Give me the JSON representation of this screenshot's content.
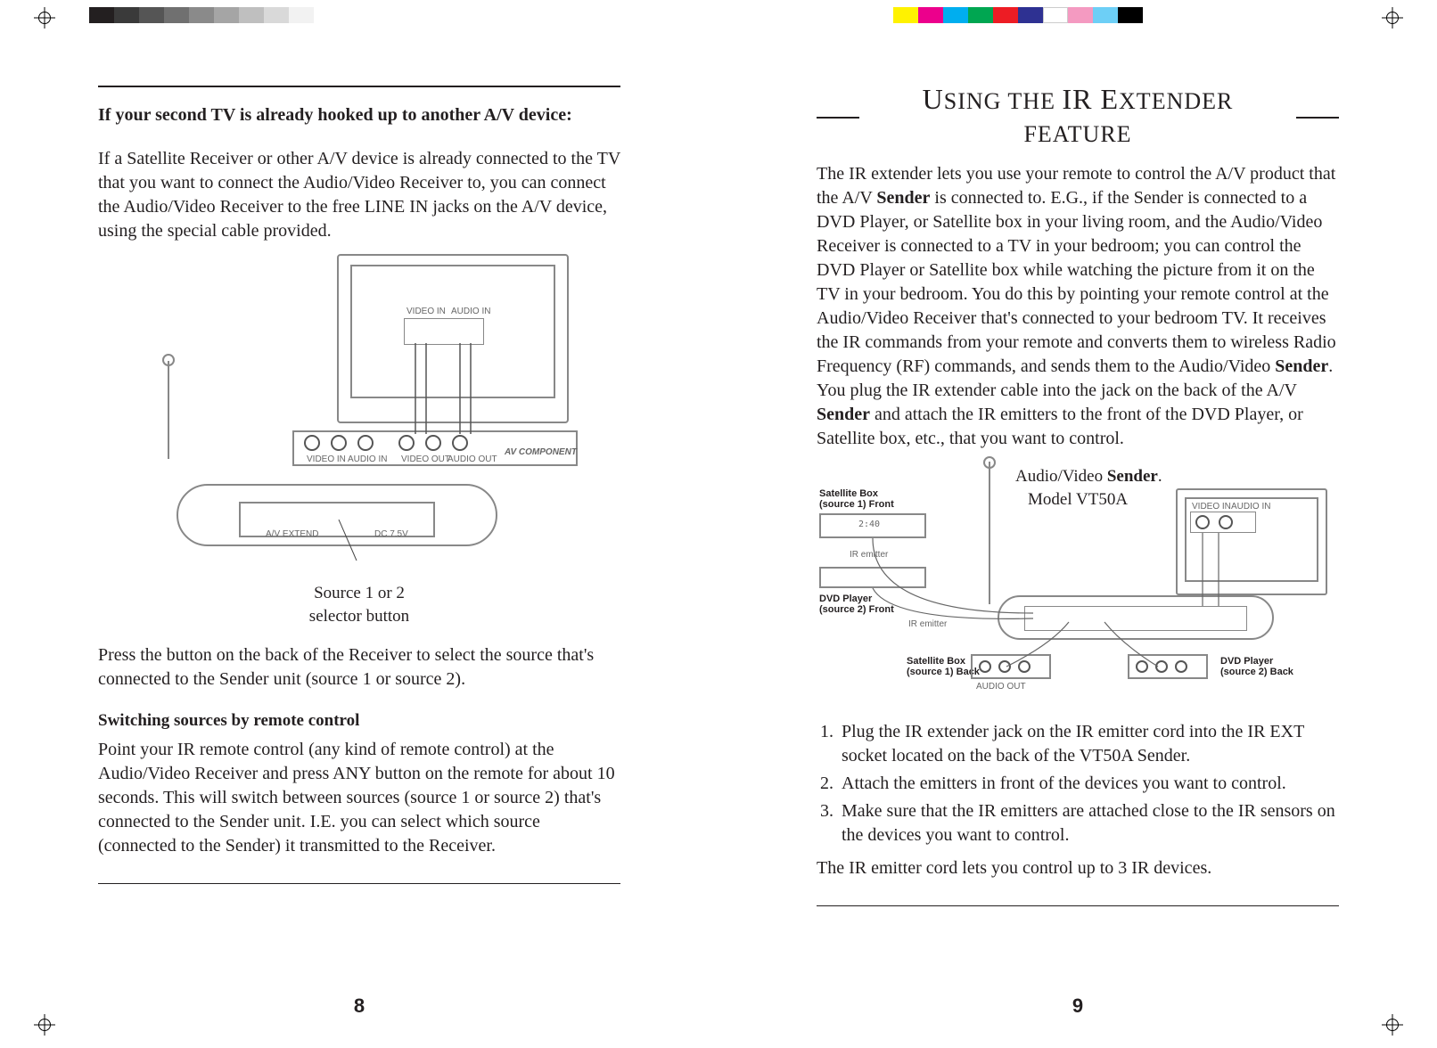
{
  "regSwatchesLeft": [
    "#231f20",
    "#3a3a3a",
    "#555",
    "#707070",
    "#8a8a8a",
    "#a5a5a5",
    "#bfbfbf",
    "#d9d9d9",
    "#f2f2f2"
  ],
  "regSwatchesRight": [
    "#fff200",
    "#ec008c",
    "#00aeef",
    "#00a651",
    "#ed1c24",
    "#2e3192",
    "#ffffff",
    "#f49ac1",
    "#6dcff6",
    "#000000"
  ],
  "leftPage": {
    "heading": "If your second TV is already hooked up to another A/V device:",
    "para1": "If a Satellite Receiver or other A/V device is already connected to the TV that you want to connect the Audio/Video Receiver to, you can connect the Audio/Video Receiver to the free LINE IN jacks on the A/V device, using the special cable provided.",
    "diagramLabels": {
      "videoIn": "VIDEO IN",
      "audioIn": "AUDIO IN",
      "videoOut": "VIDEO OUT",
      "audioOut": "AUDIO OUT",
      "avComponent": "AV COMPONENT",
      "avExtend": "A/V EXTEND",
      "dc": "DC 7.5V"
    },
    "caption1a": "Source 1 or 2",
    "caption1b": "selector button",
    "para2": "Press the button on the back of the Receiver to select the source that's connected to the Sender unit (source 1 or source 2).",
    "sub2": "Switching sources by remote control",
    "para3": "Point your IR remote control (any kind of remote control) at the Audio/Video Receiver and press ANY button on the remote for about 10 seconds. This will switch between sources (source 1 or source 2) that's connected to the Sender unit. I.E. you can select which source (connected to the Sender) it transmitted to the Receiver.",
    "pageNum": "8"
  },
  "rightPage": {
    "titlePre": "U",
    "titleRest": "SING THE",
    "titleBig": "IR E",
    "titleEnd": "XTENDER FEATURE",
    "para1": "The IR extender lets you use your remote to control the A/V product that the A/V Sender is connected to. E.G., if the Sender is connected to a DVD Player, or Satellite box in your living room, and the Audio/Video Receiver is connected to a TV in your bedroom; you can control the DVD Player or Satellite box while watching the picture from it on the TV in your bedroom. You do this by pointing your remote control at the Audio/Video Receiver that's connected to your bedroom TV. It receives the IR commands from your remote and converts them to wireless Radio Frequency (RF) commands, and sends them to the Audio/Video Sender. You plug the IR extender cable into the jack on the back of the A/V Sender and attach the IR emitters to the front of the DVD Player, or Satellite box, etc., that you want to control.",
    "diag": {
      "senderLabel": "Audio/Video Sender.",
      "model": "Model VT50A",
      "satFront": "Satellite Box\n(source 1) Front",
      "dvdFront": "DVD Player\n(source 2) Front",
      "irEmitter": "IR emitter",
      "satBack": "Satellite Box\n(source 1) Back",
      "dvdBack": "DVD Player\n(source 2) Back",
      "videoIn": "VIDEO IN",
      "audioIn": "AUDIO IN",
      "audioOut": "AUDIO OUT"
    },
    "steps": [
      "Plug the IR extender jack on the IR emitter cord into the IR EXT socket located on the back of the VT50A Sender.",
      "Attach the emitters in front of the devices you want to control.",
      "Make sure that the IR emitters are attached close to the IR sensors on the devices you want to control."
    ],
    "para2": "The IR emitter cord lets you control up to 3 IR devices.",
    "pageNum": "9"
  }
}
